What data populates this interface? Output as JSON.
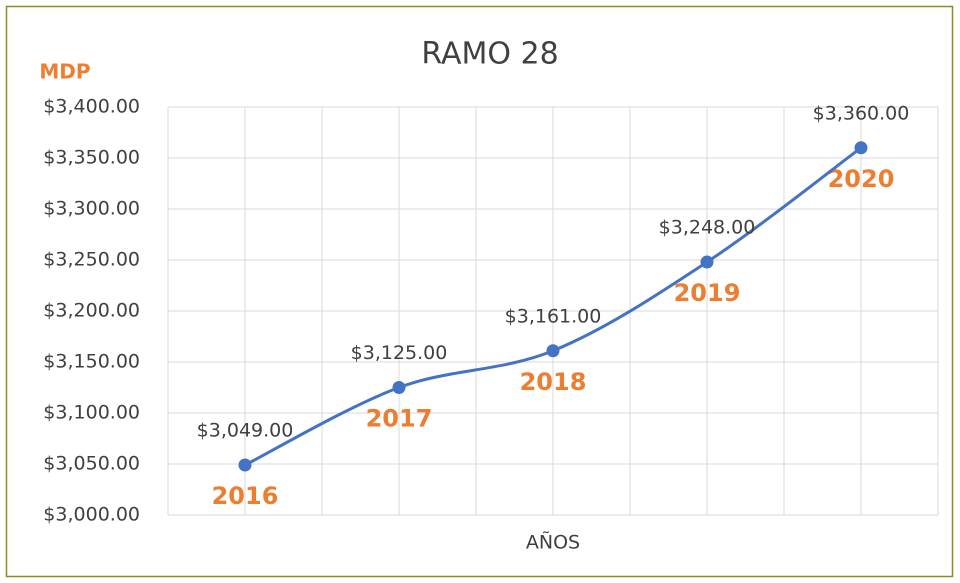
{
  "chart_data": {
    "type": "line",
    "title": "RAMO 28",
    "y_axis_label": "MDP",
    "x_axis_label": "AÑOS",
    "categories": [
      "2016",
      "2017",
      "2018",
      "2019",
      "2020"
    ],
    "series": [
      {
        "name": "RAMO 28",
        "color": "#4472c4",
        "values": [
          3049,
          3125,
          3161,
          3248,
          3360
        ],
        "value_labels": [
          "$3,049.00",
          "$3,125.00",
          "$3,161.00",
          "$3,248.00",
          "$3,360.00"
        ]
      }
    ],
    "ylim": [
      3000,
      3400
    ],
    "yticks": [
      {
        "value": 3000,
        "label": "$3,000.00"
      },
      {
        "value": 3050,
        "label": "$3,050.00"
      },
      {
        "value": 3100,
        "label": "$3,100.00"
      },
      {
        "value": 3150,
        "label": "$3,150.00"
      },
      {
        "value": 3200,
        "label": "$3,200.00"
      },
      {
        "value": 3250,
        "label": "$3,250.00"
      },
      {
        "value": 3300,
        "label": "$3,300.00"
      },
      {
        "value": 3350,
        "label": "$3,350.00"
      },
      {
        "value": 3400,
        "label": "$3,400.00"
      }
    ],
    "grid": true,
    "smooth": true
  }
}
